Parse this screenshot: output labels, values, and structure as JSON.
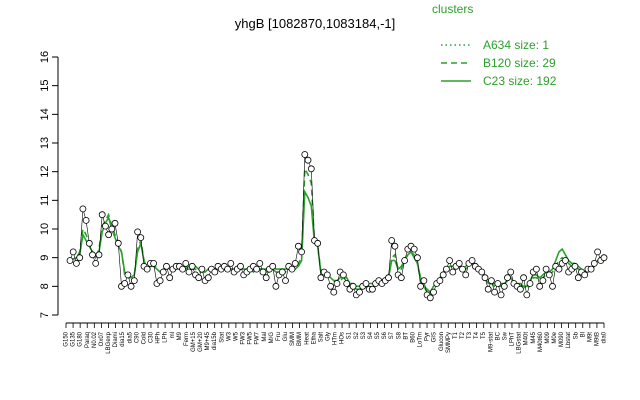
{
  "chart_data": {
    "type": "line",
    "title": "yhgB [1082870,1083184,-1]",
    "xlabel": "",
    "ylabel": "",
    "ylim": [
      7,
      16
    ],
    "yticks": [
      7,
      8,
      9,
      10,
      11,
      12,
      13,
      14,
      15,
      16
    ],
    "legend": {
      "title": "clusters",
      "position": "top-right",
      "entries": [
        {
          "label": "A634 size: 1",
          "style": "dotted"
        },
        {
          "label": "B120 size: 29",
          "style": "dashed"
        },
        {
          "label": "C23 size: 192",
          "style": "solid"
        }
      ]
    },
    "x_tick_labels": [
      "G150",
      "G135",
      "G180",
      "Paraq",
      "N0.02",
      "Ox07",
      "LBGexp",
      "Diami",
      "dia15",
      "dia5",
      "C90",
      "Cold",
      "C30",
      "HPh",
      "LPh",
      "ml",
      "M9",
      "Ferm",
      "GM+15",
      "GM+20",
      "M9+45",
      "dia15b",
      "Stat",
      "W3",
      "W5",
      "FW3",
      "FW5",
      "FW7",
      "Mal",
      "M/G",
      "Fru",
      "Glu",
      "SMM",
      "BMM",
      "Heat",
      "Etha",
      "Salt",
      "Gly",
      "HTm",
      "HOs",
      "S1",
      "S2",
      "S3",
      "S4",
      "S5",
      "S6",
      "S7",
      "S8",
      "BT",
      "B60",
      "LoTm",
      "Pyr",
      "GIS",
      "Glucon",
      "SMMPy",
      "T1",
      "T2",
      "T3",
      "T4",
      "T5",
      "M9-stat",
      "BC",
      "Sw",
      "LPhT",
      "LBGstat",
      "M40t",
      "M45",
      "M40t60",
      "M09",
      "M0e",
      "M090",
      "Lbstat",
      "Sb",
      "Bl",
      "M9t",
      "M9tB",
      "dia0"
    ],
    "series": [
      {
        "style": "points",
        "y": [
          8.9,
          9.2,
          8.8,
          9.0,
          10.7,
          10.3,
          9.5,
          9.1,
          8.8,
          9.1,
          10.5,
          10.1,
          9.8,
          10.0,
          10.2,
          9.5,
          8.0,
          8.1,
          8.4,
          8.0,
          8.2,
          9.9,
          9.7,
          8.7,
          8.6,
          8.8,
          8.8,
          8.1,
          8.2,
          8.5,
          8.7,
          8.3,
          8.6,
          8.7,
          8.7,
          8.6,
          8.8,
          8.5,
          8.7,
          8.4,
          8.3,
          8.6,
          8.2,
          8.3,
          8.6,
          8.5,
          8.7,
          8.6,
          8.7,
          8.6,
          8.8,
          8.5,
          8.6,
          8.7,
          8.4,
          8.5,
          8.6,
          8.7,
          8.6,
          8.8,
          8.5,
          8.3,
          8.6,
          8.7,
          8.0,
          8.4,
          8.5,
          8.2,
          8.7,
          8.6,
          8.8,
          9.4,
          9.2,
          12.6,
          12.4,
          12.1,
          9.6,
          9.5,
          8.3,
          8.5,
          8.4,
          8.0,
          7.8,
          8.1,
          8.5,
          8.4,
          8.1,
          7.9,
          8.0,
          7.7,
          7.8,
          8.0,
          8.1,
          7.9,
          7.9,
          8.1,
          8.2,
          8.1,
          8.2,
          8.3,
          9.6,
          9.4,
          8.4,
          8.3,
          8.9,
          9.3,
          9.4,
          9.3,
          9.0,
          8.0,
          8.2,
          7.7,
          7.6,
          7.8,
          8.1,
          8.2,
          8.4,
          8.6,
          8.9,
          8.5,
          8.7,
          8.8,
          8.6,
          8.4,
          8.8,
          8.9,
          8.7,
          8.6,
          8.5,
          8.3,
          7.9,
          8.2,
          7.8,
          8.1,
          7.7,
          8.0,
          8.3,
          8.5,
          8.1,
          8.0,
          7.9,
          8.3,
          7.7,
          8.1,
          8.5,
          8.6,
          8.0,
          8.2,
          8.6,
          8.4,
          8.0,
          8.7,
          8.6,
          8.8,
          8.9,
          8.5,
          8.6,
          8.7,
          8.3,
          8.5,
          8.4,
          8.6,
          8.6,
          8.8,
          9.2,
          8.9,
          9.0
        ]
      },
      {
        "style": "solid",
        "y": [
          8.9,
          8.95,
          9.0,
          9.1,
          9.8,
          9.6,
          9.4,
          9.2,
          9.0,
          9.2,
          9.9,
          10.2,
          10.4,
          10.0,
          9.7,
          9.4,
          9.2,
          8.5,
          8.4,
          8.3,
          8.4,
          9.2,
          9.5,
          8.9,
          8.6,
          8.7,
          8.7,
          8.6,
          8.5,
          8.6,
          8.7,
          8.6,
          8.6,
          8.6,
          8.7,
          8.6,
          8.6,
          8.7,
          8.6,
          8.7,
          8.6,
          8.5,
          8.5,
          8.6,
          8.6,
          8.6,
          8.7,
          8.6,
          8.6,
          8.6,
          8.6,
          8.6,
          8.7,
          8.6,
          8.6,
          8.6,
          8.6,
          8.5,
          8.6,
          8.6,
          8.6,
          8.6,
          8.6,
          8.7,
          8.6,
          8.6,
          8.6,
          8.6,
          8.6,
          8.7,
          8.6,
          8.7,
          8.9,
          11.3,
          11.1,
          10.8,
          9.5,
          9.4,
          8.5,
          8.5,
          8.4,
          8.3,
          8.2,
          8.2,
          8.3,
          8.4,
          8.3,
          8.1,
          8.1,
          8.0,
          8.0,
          8.0,
          8.1,
          8.1,
          8.1,
          8.1,
          8.2,
          8.2,
          8.3,
          8.3,
          8.9,
          8.9,
          8.6,
          8.7,
          8.9,
          9.1,
          9.2,
          9.0,
          8.8,
          8.3,
          8.0,
          7.9,
          7.8,
          8.0,
          8.1,
          8.3,
          8.5,
          8.6,
          8.7,
          8.7,
          8.8,
          8.7,
          8.6,
          8.7,
          8.8,
          8.8,
          8.7,
          8.6,
          8.5,
          8.3,
          8.1,
          8.1,
          8.1,
          8.1,
          8.1,
          8.1,
          8.2,
          8.3,
          8.1,
          8.1,
          8.1,
          8.0,
          8.0,
          8.2,
          8.4,
          8.4,
          8.3,
          8.4,
          8.5,
          8.5,
          8.6,
          8.9,
          9.2,
          9.3,
          9.1,
          8.9,
          8.8,
          8.8,
          8.7,
          8.6,
          8.5,
          8.6,
          8.6,
          8.7,
          8.9,
          9.0,
          9.0
        ]
      },
      {
        "style": "dashed",
        "y": [
          8.9,
          8.95,
          9.0,
          9.2,
          10.0,
          9.8,
          9.5,
          9.2,
          9.0,
          9.3,
          10.1,
          10.3,
          10.5,
          10.1,
          9.8,
          9.5,
          9.2,
          8.4,
          8.3,
          8.3,
          8.4,
          9.3,
          9.6,
          8.9,
          8.6,
          8.7,
          8.8,
          8.6,
          8.5,
          8.6,
          8.7,
          8.6,
          8.6,
          8.7,
          8.7,
          8.6,
          8.7,
          8.7,
          8.6,
          8.6,
          8.5,
          8.5,
          8.5,
          8.6,
          8.6,
          8.6,
          8.7,
          8.6,
          8.6,
          8.6,
          8.6,
          8.6,
          8.6,
          8.6,
          8.6,
          8.6,
          8.6,
          8.6,
          8.6,
          8.6,
          8.6,
          8.5,
          8.5,
          8.6,
          8.5,
          8.5,
          8.6,
          8.5,
          8.6,
          8.6,
          8.6,
          8.8,
          9.0,
          12.1,
          11.9,
          11.6,
          9.5,
          9.4,
          8.5,
          8.5,
          8.4,
          8.3,
          8.2,
          8.1,
          8.2,
          8.3,
          8.2,
          8.0,
          8.0,
          7.9,
          7.9,
          8.0,
          8.0,
          8.0,
          8.0,
          8.1,
          8.2,
          8.2,
          8.2,
          8.3,
          9.0,
          9.1,
          8.6,
          8.6,
          8.9,
          9.1,
          9.2,
          9.1,
          8.8,
          8.2,
          8.0,
          7.8,
          7.7,
          7.9,
          8.1,
          8.2,
          8.4,
          8.6,
          8.7,
          8.7,
          8.8,
          8.7,
          8.6,
          8.6,
          8.7,
          8.8,
          8.7,
          8.6,
          8.4,
          8.3,
          8.1,
          8.1,
          8.0,
          8.0,
          8.0,
          8.0,
          8.2,
          8.3,
          8.1,
          8.0,
          8.0,
          8.0,
          7.9,
          8.1,
          8.3,
          8.3,
          8.2,
          8.3,
          8.4,
          8.4,
          8.5,
          8.7,
          8.9,
          9.0,
          8.9,
          8.8,
          8.7,
          8.7,
          8.6,
          8.5,
          8.5,
          8.5,
          8.6,
          8.7,
          8.9,
          9.0,
          9.0
        ]
      }
    ],
    "grid": false,
    "colors": {
      "line": "#2ca02c",
      "points": "#000000",
      "point_fill": "#ffffff",
      "axis": "#000000"
    }
  }
}
